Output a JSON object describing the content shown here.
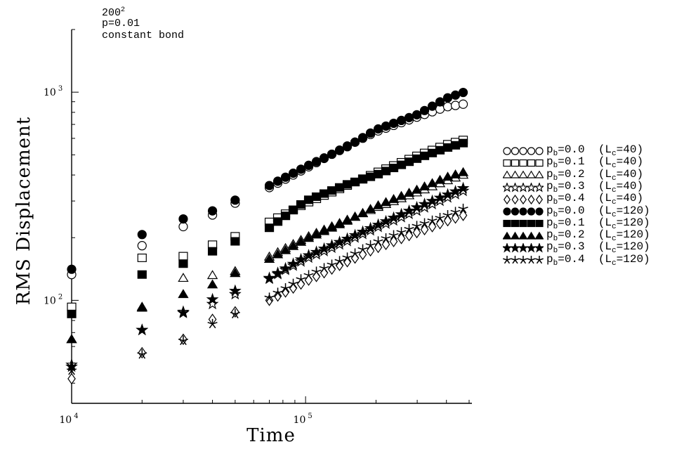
{
  "annotation": {
    "size_base": "200",
    "size_exp": "2",
    "p": "p=0.01",
    "mode": "constant bond"
  },
  "chart_data": {
    "type": "scatter",
    "title": "",
    "xlabel": "Time",
    "ylabel": "RMS Displacement",
    "xscale": "log",
    "yscale": "log",
    "xlim": [
      10000,
      500000
    ],
    "ylim": [
      32,
      2000
    ],
    "x_ticks": [
      {
        "value": 10000,
        "base": "10",
        "exp": "4"
      },
      {
        "value": 100000,
        "base": "10",
        "exp": "5"
      }
    ],
    "y_ticks": [
      {
        "value": 100,
        "base": "10",
        "exp": "2"
      },
      {
        "value": 1000,
        "base": "10",
        "exp": "3"
      }
    ],
    "grid": false,
    "legend_position": "right",
    "series": [
      {
        "name": "pb=0.0 (Lc=40)",
        "label_main": "p",
        "label_sub": "b",
        "label_val": "=0.0",
        "label_l": "(L",
        "label_lsub": "c",
        "label_lval": "=40)",
        "marker": "circle-open",
        "points": [
          [
            10000,
            133
          ],
          [
            20000,
            183
          ],
          [
            30000,
            226
          ],
          [
            40000,
            257
          ],
          [
            50000,
            293
          ],
          [
            70000,
            348
          ],
          [
            100000,
            430
          ],
          [
            150000,
            550
          ],
          [
            200000,
            646
          ],
          [
            300000,
            760
          ],
          [
            400000,
            850
          ],
          [
            500000,
            885
          ]
        ]
      },
      {
        "name": "pb=0.1 (Lc=40)",
        "label_main": "p",
        "label_sub": "b",
        "label_val": "=0.1",
        "label_l": "(L",
        "label_lsub": "c",
        "label_lval": "=40)",
        "marker": "square-open",
        "points": [
          [
            10000,
            93
          ],
          [
            20000,
            160
          ],
          [
            30000,
            163
          ],
          [
            40000,
            185
          ],
          [
            50000,
            203
          ],
          [
            70000,
            238
          ],
          [
            100000,
            292
          ],
          [
            150000,
            355
          ],
          [
            200000,
            410
          ],
          [
            300000,
            495
          ],
          [
            400000,
            560
          ],
          [
            500000,
            600
          ]
        ]
      },
      {
        "name": "pb=0.2 (Lc=40)",
        "label_main": "p",
        "label_sub": "b",
        "label_val": "=0.2",
        "label_l": "(L",
        "label_lsub": "c",
        "label_lval": "=40)",
        "marker": "triangle-open",
        "points": [
          [
            10000,
            65
          ],
          [
            20000,
            93
          ],
          [
            30000,
            128
          ],
          [
            40000,
            132
          ],
          [
            50000,
            138
          ],
          [
            70000,
            162
          ],
          [
            100000,
            200
          ],
          [
            150000,
            243
          ],
          [
            200000,
            278
          ],
          [
            300000,
            330
          ],
          [
            400000,
            375
          ],
          [
            500000,
            410
          ]
        ]
      },
      {
        "name": "pb=0.3 (Lc=40)",
        "label_main": "p",
        "label_sub": "b",
        "label_val": "=0.3",
        "label_l": "(L",
        "label_lsub": "c",
        "label_lval": "=40)",
        "marker": "star-open",
        "points": [
          [
            10000,
            49
          ],
          [
            20000,
            72
          ],
          [
            30000,
            88
          ],
          [
            40000,
            96
          ],
          [
            50000,
            107
          ],
          [
            70000,
            127
          ],
          [
            100000,
            158
          ],
          [
            150000,
            192
          ],
          [
            200000,
            223
          ],
          [
            300000,
            270
          ],
          [
            400000,
            310
          ],
          [
            500000,
            345
          ]
        ]
      },
      {
        "name": "pb=0.4 (Lc=40)",
        "label_main": "p",
        "label_sub": "b",
        "label_val": "=0.4",
        "label_l": "(L",
        "label_lsub": "c",
        "label_lval": "=40)",
        "marker": "diamond-open",
        "points": [
          [
            10000,
            42
          ],
          [
            20000,
            56
          ],
          [
            30000,
            65
          ],
          [
            40000,
            81
          ],
          [
            50000,
            88
          ],
          [
            70000,
            100
          ],
          [
            100000,
            123
          ],
          [
            150000,
            153
          ],
          [
            200000,
            178
          ],
          [
            300000,
            212
          ],
          [
            400000,
            240
          ],
          [
            500000,
            262
          ]
        ]
      },
      {
        "name": "pb=0.0 (Lc=120)",
        "label_main": "p",
        "label_sub": "b",
        "label_val": "=0.0",
        "label_l": "(L",
        "label_lsub": "c",
        "label_lval": "=120)",
        "marker": "circle-filled",
        "points": [
          [
            10000,
            141
          ],
          [
            20000,
            207
          ],
          [
            30000,
            246
          ],
          [
            40000,
            269
          ],
          [
            50000,
            303
          ],
          [
            70000,
            356
          ],
          [
            100000,
            438
          ],
          [
            150000,
            545
          ],
          [
            200000,
            660
          ],
          [
            300000,
            780
          ],
          [
            400000,
            935
          ],
          [
            500000,
            1020
          ]
        ]
      },
      {
        "name": "pb=0.1 (Lc=120)",
        "label_main": "p",
        "label_sub": "b",
        "label_val": "=0.1",
        "label_l": "(L",
        "label_lsub": "c",
        "label_lval": "=120)",
        "marker": "square-filled",
        "points": [
          [
            10000,
            86
          ],
          [
            20000,
            133
          ],
          [
            30000,
            150
          ],
          [
            40000,
            172
          ],
          [
            50000,
            192
          ],
          [
            70000,
            223
          ],
          [
            100000,
            300
          ],
          [
            150000,
            360
          ],
          [
            200000,
            400
          ],
          [
            300000,
            480
          ],
          [
            400000,
            540
          ],
          [
            500000,
            580
          ]
        ]
      },
      {
        "name": "pb=0.2 (Lc=120)",
        "label_main": "p",
        "label_sub": "b",
        "label_val": "=0.2",
        "label_l": "(L",
        "label_lsub": "c",
        "label_lval": "=120)",
        "marker": "triangle-filled",
        "points": [
          [
            10000,
            65
          ],
          [
            20000,
            92
          ],
          [
            30000,
            107
          ],
          [
            40000,
            119
          ],
          [
            50000,
            135
          ],
          [
            70000,
            158
          ],
          [
            100000,
            196
          ],
          [
            150000,
            240
          ],
          [
            200000,
            283
          ],
          [
            300000,
            340
          ],
          [
            400000,
            390
          ],
          [
            500000,
            420
          ]
        ]
      },
      {
        "name": "pb=0.3 (Lc=120)",
        "label_main": "p",
        "label_sub": "b",
        "label_val": "=0.3",
        "label_l": "(L",
        "label_lsub": "c",
        "label_lval": "=120)",
        "marker": "star-filled",
        "points": [
          [
            10000,
            48
          ],
          [
            20000,
            72
          ],
          [
            30000,
            87
          ],
          [
            40000,
            101
          ],
          [
            50000,
            111
          ],
          [
            70000,
            128
          ],
          [
            100000,
            162
          ],
          [
            150000,
            197
          ],
          [
            200000,
            228
          ],
          [
            300000,
            280
          ],
          [
            400000,
            320
          ],
          [
            500000,
            355
          ]
        ]
      },
      {
        "name": "pb=0.4 (Lc=120)",
        "label_main": "p",
        "label_sub": "b",
        "label_val": "=0.4",
        "label_l": "(L",
        "label_lsub": "c",
        "label_lval": "=120)",
        "marker": "asterisk",
        "points": [
          [
            10000,
            46
          ],
          [
            20000,
            55
          ],
          [
            30000,
            64
          ],
          [
            40000,
            77
          ],
          [
            50000,
            86
          ],
          [
            70000,
            103
          ],
          [
            100000,
            130
          ],
          [
            150000,
            160
          ],
          [
            200000,
            190
          ],
          [
            300000,
            228
          ],
          [
            400000,
            255
          ],
          [
            500000,
            283
          ]
        ]
      }
    ]
  }
}
